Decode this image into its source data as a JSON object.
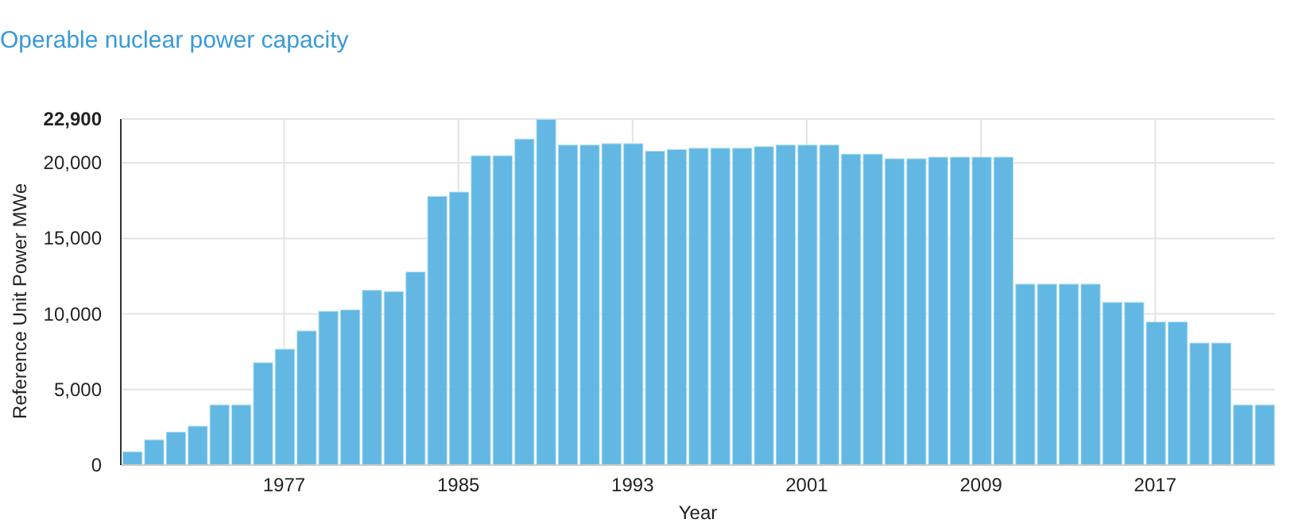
{
  "chart_data": {
    "type": "bar",
    "title": "Operable nuclear power capacity",
    "xlabel": "Year",
    "ylabel": "Reference Unit Power MWe",
    "x": [
      1970,
      1971,
      1972,
      1973,
      1974,
      1975,
      1976,
      1977,
      1978,
      1979,
      1980,
      1981,
      1982,
      1983,
      1984,
      1985,
      1986,
      1987,
      1988,
      1989,
      1990,
      1991,
      1992,
      1993,
      1994,
      1995,
      1996,
      1997,
      1998,
      1999,
      2000,
      2001,
      2002,
      2003,
      2004,
      2005,
      2006,
      2007,
      2008,
      2009,
      2010,
      2011,
      2012,
      2013,
      2014,
      2015,
      2016,
      2017,
      2018,
      2019,
      2020,
      2021,
      2022
    ],
    "values": [
      900,
      1700,
      2200,
      2600,
      4000,
      4000,
      6800,
      7700,
      8900,
      10200,
      10300,
      11600,
      11500,
      12800,
      17800,
      18100,
      20500,
      20500,
      21600,
      22900,
      21200,
      21200,
      21300,
      21300,
      20800,
      20900,
      21000,
      21000,
      21000,
      21100,
      21200,
      21200,
      21200,
      20600,
      20600,
      20300,
      20300,
      20400,
      20400,
      20400,
      20400,
      12000,
      12000,
      12000,
      12000,
      10800,
      10800,
      9500,
      9500,
      8100,
      8100,
      4000,
      4000
    ],
    "color": "#5ab4e2",
    "xlim": [
      1969.5,
      2022.5
    ],
    "xticks": [
      {
        "value": 1977,
        "label": "1977"
      },
      {
        "value": 1985,
        "label": "1985"
      },
      {
        "value": 1993,
        "label": "1993"
      },
      {
        "value": 2001,
        "label": "2001"
      },
      {
        "value": 2009,
        "label": "2009"
      },
      {
        "value": 2017,
        "label": "2017"
      }
    ],
    "ylim": [
      0,
      22900
    ],
    "yticks": [
      0,
      {
        "value": 5000,
        "label": "5,000"
      },
      {
        "value": 10000,
        "label": "10,000"
      },
      {
        "value": 15000,
        "label": "15,000"
      },
      {
        "value": 20000,
        "label": "20,000"
      },
      {
        "value": 22900,
        "label": "22,900"
      }
    ],
    "grid": true
  }
}
